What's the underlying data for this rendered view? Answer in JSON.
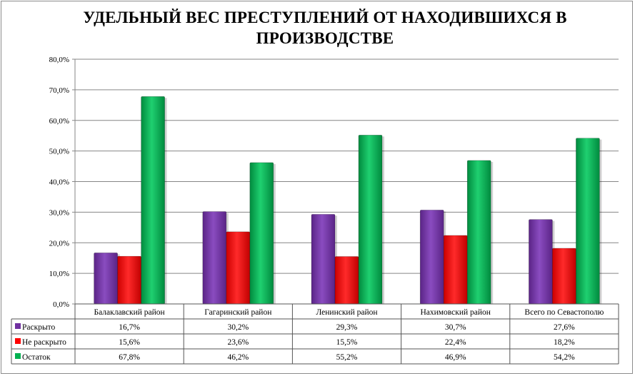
{
  "chart_data": {
    "type": "bar",
    "title": "УДЕЛЬНЫЙ ВЕС ПРЕСТУПЛЕНИЙ ОТ НАХОДИВШИХСЯ В ПРОИЗВОДСТВЕ",
    "categories": [
      "Балаклавский район",
      "Гагаринский район",
      "Ленинский район",
      "Нахимовский район",
      "Всего по Севастополю"
    ],
    "series": [
      {
        "name": "Раскрыто",
        "color": "#7030a0",
        "values": [
          16.7,
          30.2,
          29.3,
          30.7,
          27.6
        ],
        "labels": [
          "16,7%",
          "30,2%",
          "29,3%",
          "30,7%",
          "27,6%"
        ]
      },
      {
        "name": "Не раскрыто",
        "color": "#ff0000",
        "values": [
          15.6,
          23.6,
          15.5,
          22.4,
          18.2
        ],
        "labels": [
          "15,6%",
          "23,6%",
          "15,5%",
          "22,4%",
          "18,2%"
        ]
      },
      {
        "name": "Остаток",
        "color": "#00b050",
        "values": [
          67.8,
          46.2,
          55.2,
          46.9,
          54.2
        ],
        "labels": [
          "67,8%",
          "46,2%",
          "55,2%",
          "46,9%",
          "54,2%"
        ]
      }
    ],
    "ylim": [
      0,
      80
    ],
    "yticks": [
      "0,0%",
      "10,0%",
      "20,0%",
      "30,0%",
      "40,0%",
      "50,0%",
      "60,0%",
      "70,0%",
      "80,0%"
    ],
    "grid": true,
    "legend": "data-table-below"
  }
}
